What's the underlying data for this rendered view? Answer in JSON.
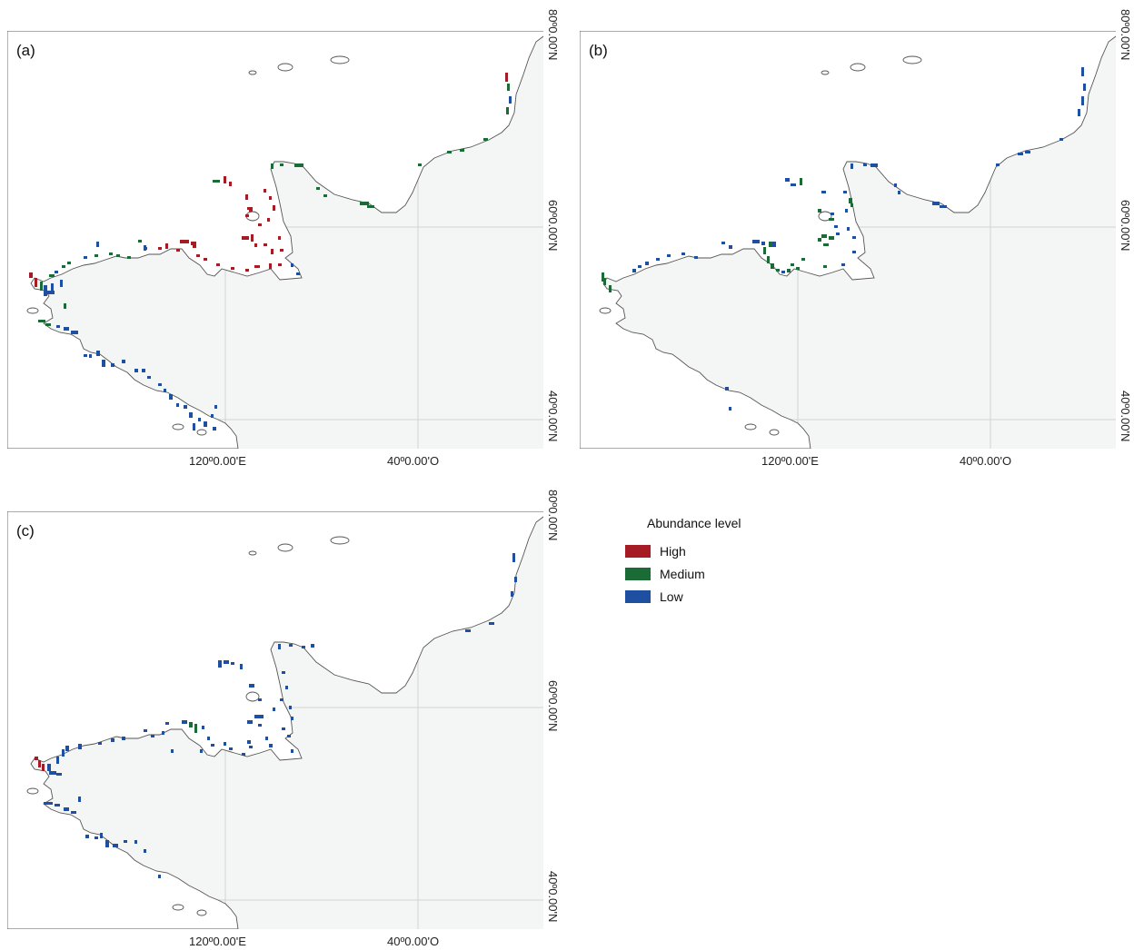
{
  "legend": {
    "title": "Abundance level",
    "items": [
      {
        "label": "High",
        "color": "#a61c24"
      },
      {
        "label": "Medium",
        "color": "#1a6b35"
      },
      {
        "label": "Low",
        "color": "#1f4fa0"
      }
    ]
  },
  "axes": {
    "lat_labels": [
      "80º0.00'N",
      "60º0.00'N",
      "40º0.00'N"
    ],
    "lon_labels": [
      "120º0.00'E",
      "40º0.00'O"
    ]
  },
  "colors": {
    "sea": "#f4f5f5",
    "land": "#ffffff",
    "coast": "#555555",
    "grid": "#d2d2d2"
  },
  "panels": [
    {
      "id": "a",
      "tag": "(a)"
    },
    {
      "id": "b",
      "tag": "(b)"
    },
    {
      "id": "c",
      "tag": "(c)"
    }
  ]
}
